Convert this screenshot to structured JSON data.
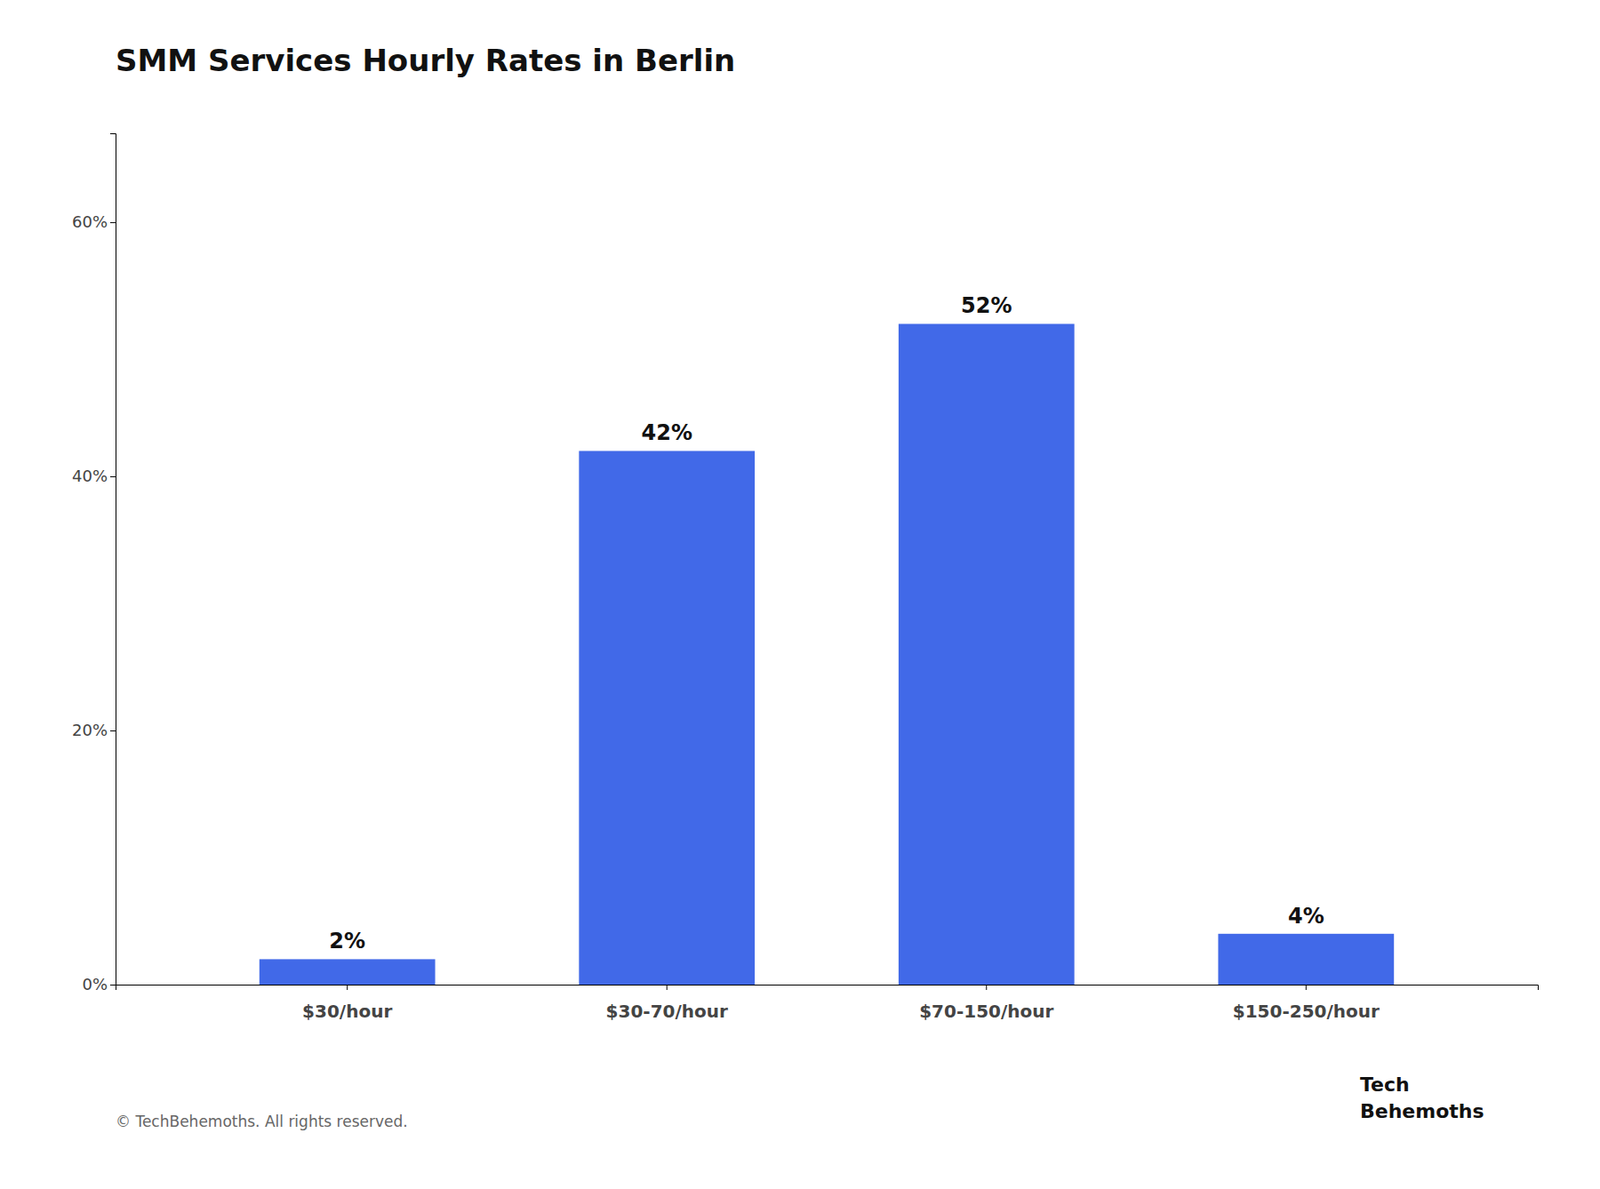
{
  "chart_data": {
    "type": "bar",
    "title": "SMM Services Hourly Rates in Berlin",
    "categories": [
      "$30/hour",
      "$30-70/hour",
      "$70-150/hour",
      "$150-250/hour"
    ],
    "values": [
      2,
      42,
      52,
      4
    ],
    "value_labels": [
      "2%",
      "42%",
      "52%",
      "4%"
    ],
    "data_labels": true,
    "color": "#4169e8",
    "ylim": [
      0,
      67
    ],
    "yticks": [
      {
        "value": 0,
        "label": "0%"
      },
      {
        "value": 20,
        "label": "20%"
      },
      {
        "value": 40,
        "label": "40%"
      },
      {
        "value": 60,
        "label": "60%"
      }
    ],
    "grid": false,
    "annotations": [
      "© TechBehemoths. All rights reserved.",
      "Tech",
      "Behemoths"
    ]
  }
}
